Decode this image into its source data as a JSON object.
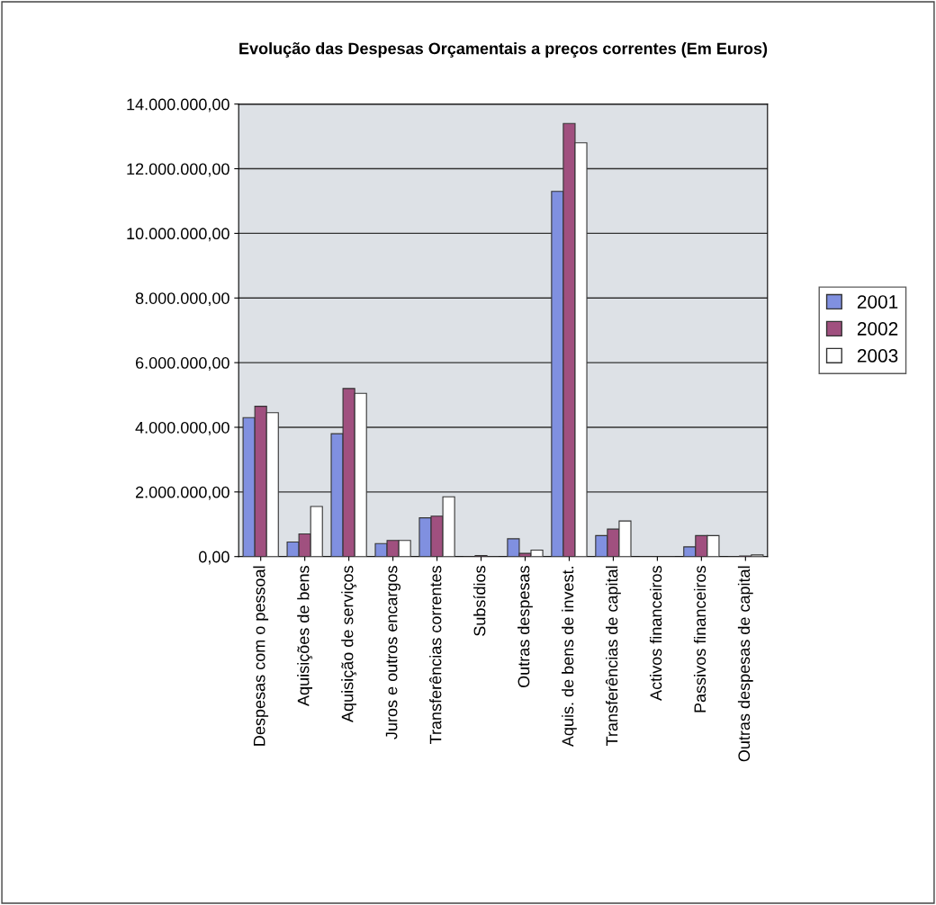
{
  "chart_data": {
    "type": "bar",
    "title": "Evolução das Despesas Orçamentais a preços correntes (Em Euros)",
    "categories": [
      "Despesas com o pessoal",
      "Aquisições de bens",
      "Aquisição de serviços",
      "Juros e outros encargos",
      "Transferências correntes",
      "Subsídios",
      "Outras despesas",
      "Aquis. de bens de invest.",
      "Transferências de capital",
      "Activos financeiros",
      "Passivos financeiros",
      "Outras despesas de capital"
    ],
    "series": [
      {
        "name": "2001",
        "color": "#8090e0",
        "values": [
          4300000,
          450000,
          3800000,
          400000,
          1200000,
          null,
          550000,
          11300000,
          650000,
          null,
          300000,
          null
        ]
      },
      {
        "name": "2002",
        "color": "#a0507f",
        "values": [
          4650000,
          700000,
          5200000,
          500000,
          1250000,
          30000,
          100000,
          13400000,
          850000,
          null,
          650000,
          20000
        ]
      },
      {
        "name": "2003",
        "color": "#ffffff",
        "values": [
          4450000,
          1550000,
          5050000,
          500000,
          1850000,
          null,
          200000,
          12800000,
          1100000,
          null,
          650000,
          50000
        ]
      }
    ],
    "ylim": [
      0,
      14000000
    ],
    "yticks": [
      {
        "value": 0,
        "label": "0,00"
      },
      {
        "value": 2000000,
        "label": "2.000.000,00"
      },
      {
        "value": 4000000,
        "label": "4.000.000,00"
      },
      {
        "value": 6000000,
        "label": "6.000.000,00"
      },
      {
        "value": 8000000,
        "label": "8.000.000,00"
      },
      {
        "value": 10000000,
        "label": "10.000.000,00"
      },
      {
        "value": 12000000,
        "label": "12.000.000,00"
      },
      {
        "value": 14000000,
        "label": "14.000.000,00"
      }
    ],
    "grid": "y",
    "legend": "right"
  }
}
